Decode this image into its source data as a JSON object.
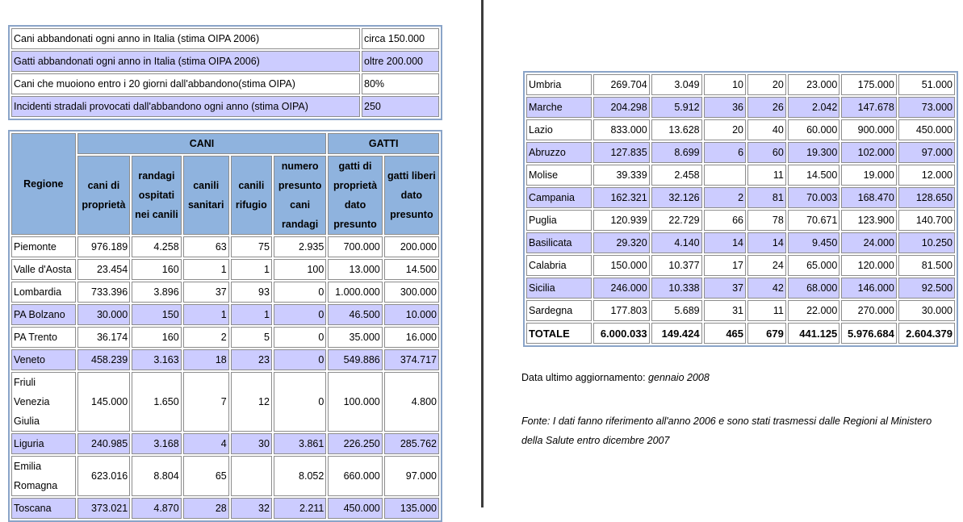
{
  "summary": [
    {
      "label": "Cani abbandonati ogni anno in Italia (stima OIPA 2006)",
      "value": "circa 150.000"
    },
    {
      "label": "Gatti abbandonati ogni anno in Italia (stima OIPA 2006)",
      "value": "oltre 200.000"
    },
    {
      "label": "Cani che muoiono entro i 20 giorni dall'abbandono(stima OIPA)",
      "value": "80%"
    },
    {
      "label": "Incidenti stradali provocati dall'abbandono ogni anno (stima OIPA)",
      "value": "250"
    }
  ],
  "headers": {
    "regione": "Regione",
    "cani": "CANI",
    "gatti": "GATTI",
    "cols": [
      "cani di proprietà",
      "randagi ospitati nei canili",
      "canili sanitari",
      "canili rifugio",
      "numero presunto cani randagi",
      "gatti di proprietà dato presunto",
      "gatti liberi dato presunto"
    ]
  },
  "left_rows": [
    {
      "r": "Piemonte",
      "v": [
        "976.189",
        "4.258",
        "63",
        "75",
        "2.935",
        "700.000",
        "200.000"
      ]
    },
    {
      "r": "Valle d'Aosta",
      "v": [
        "23.454",
        "160",
        "1",
        "1",
        "100",
        "13.000",
        "14.500"
      ]
    },
    {
      "r": "Lombardia",
      "v": [
        "733.396",
        "3.896",
        "37",
        "93",
        "0",
        "1.000.000",
        "300.000"
      ]
    },
    {
      "r": "PA Bolzano",
      "v": [
        "30.000",
        "150",
        "1",
        "1",
        "0",
        "46.500",
        "10.000"
      ]
    },
    {
      "r": "PA Trento",
      "v": [
        "36.174",
        "160",
        "2",
        "5",
        "0",
        "35.000",
        "16.000"
      ]
    },
    {
      "r": "Veneto",
      "v": [
        "458.239",
        "3.163",
        "18",
        "23",
        "0",
        "549.886",
        "374.717"
      ]
    },
    {
      "r": "Friuli Venezia Giulia",
      "v": [
        "145.000",
        "1.650",
        "7",
        "12",
        "0",
        "100.000",
        "4.800"
      ]
    },
    {
      "r": "Liguria",
      "v": [
        "240.985",
        "3.168",
        "4",
        "30",
        "3.861",
        "226.250",
        "285.762"
      ]
    },
    {
      "r": "Emilia Romagna",
      "v": [
        "623.016",
        "8.804",
        "65",
        "",
        "8.052",
        "660.000",
        "97.000"
      ]
    },
    {
      "r": "Toscana",
      "v": [
        "373.021",
        "4.870",
        "28",
        "32",
        "2.211",
        "450.000",
        "135.000"
      ]
    }
  ],
  "right_rows": [
    {
      "r": "Umbria",
      "v": [
        "269.704",
        "3.049",
        "10",
        "20",
        "23.000",
        "175.000",
        "51.000"
      ]
    },
    {
      "r": "Marche",
      "v": [
        "204.298",
        "5.912",
        "36",
        "26",
        "2.042",
        "147.678",
        "73.000"
      ]
    },
    {
      "r": "Lazio",
      "v": [
        "833.000",
        "13.628",
        "20",
        "40",
        "60.000",
        "900.000",
        "450.000"
      ]
    },
    {
      "r": "Abruzzo",
      "v": [
        "127.835",
        "8.699",
        "6",
        "60",
        "19.300",
        "102.000",
        "97.000"
      ]
    },
    {
      "r": "Molise",
      "v": [
        "39.339",
        "2.458",
        "",
        "11",
        "14.500",
        "19.000",
        "12.000"
      ]
    },
    {
      "r": "Campania",
      "v": [
        "162.321",
        "32.126",
        "2",
        "81",
        "70.003",
        "168.470",
        "128.650"
      ]
    },
    {
      "r": "Puglia",
      "v": [
        "120.939",
        "22.729",
        "66",
        "78",
        "70.671",
        "123.900",
        "140.700"
      ]
    },
    {
      "r": "Basilicata",
      "v": [
        "29.320",
        "4.140",
        "14",
        "14",
        "9.450",
        "24.000",
        "10.250"
      ]
    },
    {
      "r": "Calabria",
      "v": [
        "150.000",
        "10.377",
        "17",
        "24",
        "65.000",
        "120.000",
        "81.500"
      ]
    },
    {
      "r": "Sicilia",
      "v": [
        "246.000",
        "10.338",
        "37",
        "42",
        "68.000",
        "146.000",
        "92.500"
      ]
    },
    {
      "r": "Sardegna",
      "v": [
        "177.803",
        "5.689",
        "31",
        "11",
        "22.000",
        "270.000",
        "30.000"
      ]
    }
  ],
  "totale": {
    "r": "TOTALE",
    "v": [
      "6.000.033",
      "149.424",
      "465",
      "679",
      "441.125",
      "5.976.684",
      "2.604.379"
    ]
  },
  "notes": {
    "update_label": "Data ultimo aggiornamento:",
    "update_value": "gennaio 2008",
    "fonte_line1": "Fonte: I dati fanno riferimento all'anno 2006 e sono stati trasmessi dalle Regioni al Ministero",
    "fonte_line2": "della Salute entro dicembre 2007"
  }
}
